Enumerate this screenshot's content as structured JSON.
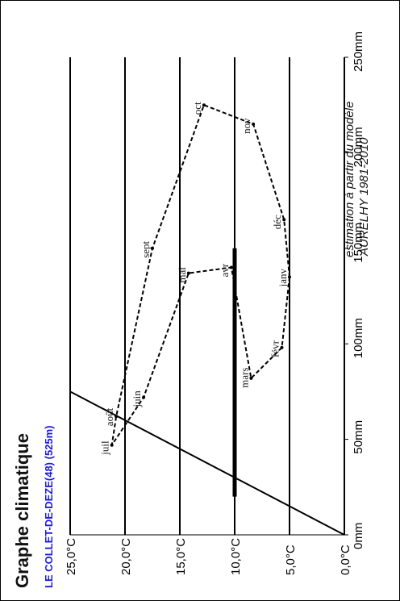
{
  "chart_data": {
    "type": "line",
    "title": "Graphe climatique",
    "subtitle": "LE COLLET-DE-DEZE(48) (525m)",
    "note_line1": "estimation à partir du modèle",
    "note_line2": "AURELHY 1981-2010",
    "temperature_axis": {
      "ticks": [
        "0,0°C",
        "5,0°C",
        "10,0°C",
        "15,0°C",
        "20,0°C",
        "25,0°C"
      ],
      "values": [
        0,
        5,
        10,
        15,
        20,
        25
      ],
      "range": [
        0,
        25
      ]
    },
    "precipitation_axis": {
      "ticks": [
        "0mm",
        "50mm",
        "100mm",
        "150mm",
        "200mm",
        "250mm"
      ],
      "values": [
        0,
        50,
        100,
        150,
        200,
        250
      ],
      "range": [
        0,
        250
      ]
    },
    "series": [
      {
        "style": "dashed",
        "points": [
          {
            "month": "janv",
            "temp": 5.0,
            "precip": 135
          },
          {
            "month": "févr",
            "temp": 5.7,
            "precip": 98
          },
          {
            "month": "mars",
            "temp": 8.5,
            "precip": 82
          },
          {
            "month": "avr",
            "temp": 10.3,
            "precip": 140
          },
          {
            "month": "mai",
            "temp": 14.2,
            "precip": 137
          },
          {
            "month": "juin",
            "temp": 18.3,
            "precip": 72
          },
          {
            "month": "juil",
            "temp": 21.2,
            "precip": 47
          },
          {
            "month": "août",
            "temp": 20.8,
            "precip": 62
          },
          {
            "month": "sept",
            "temp": 17.5,
            "precip": 150
          },
          {
            "month": "oct",
            "temp": 12.8,
            "precip": 225
          },
          {
            "month": "nov",
            "temp": 8.3,
            "precip": 215
          },
          {
            "month": "déc",
            "temp": 5.5,
            "precip": 165
          }
        ]
      }
    ],
    "reference_line": {
      "temp_at_0mm": 0,
      "temp_at_75mm": 25
    },
    "mean_bar": {
      "temp": 10,
      "precip_from": 20,
      "precip_to": 150
    },
    "grid": true
  }
}
